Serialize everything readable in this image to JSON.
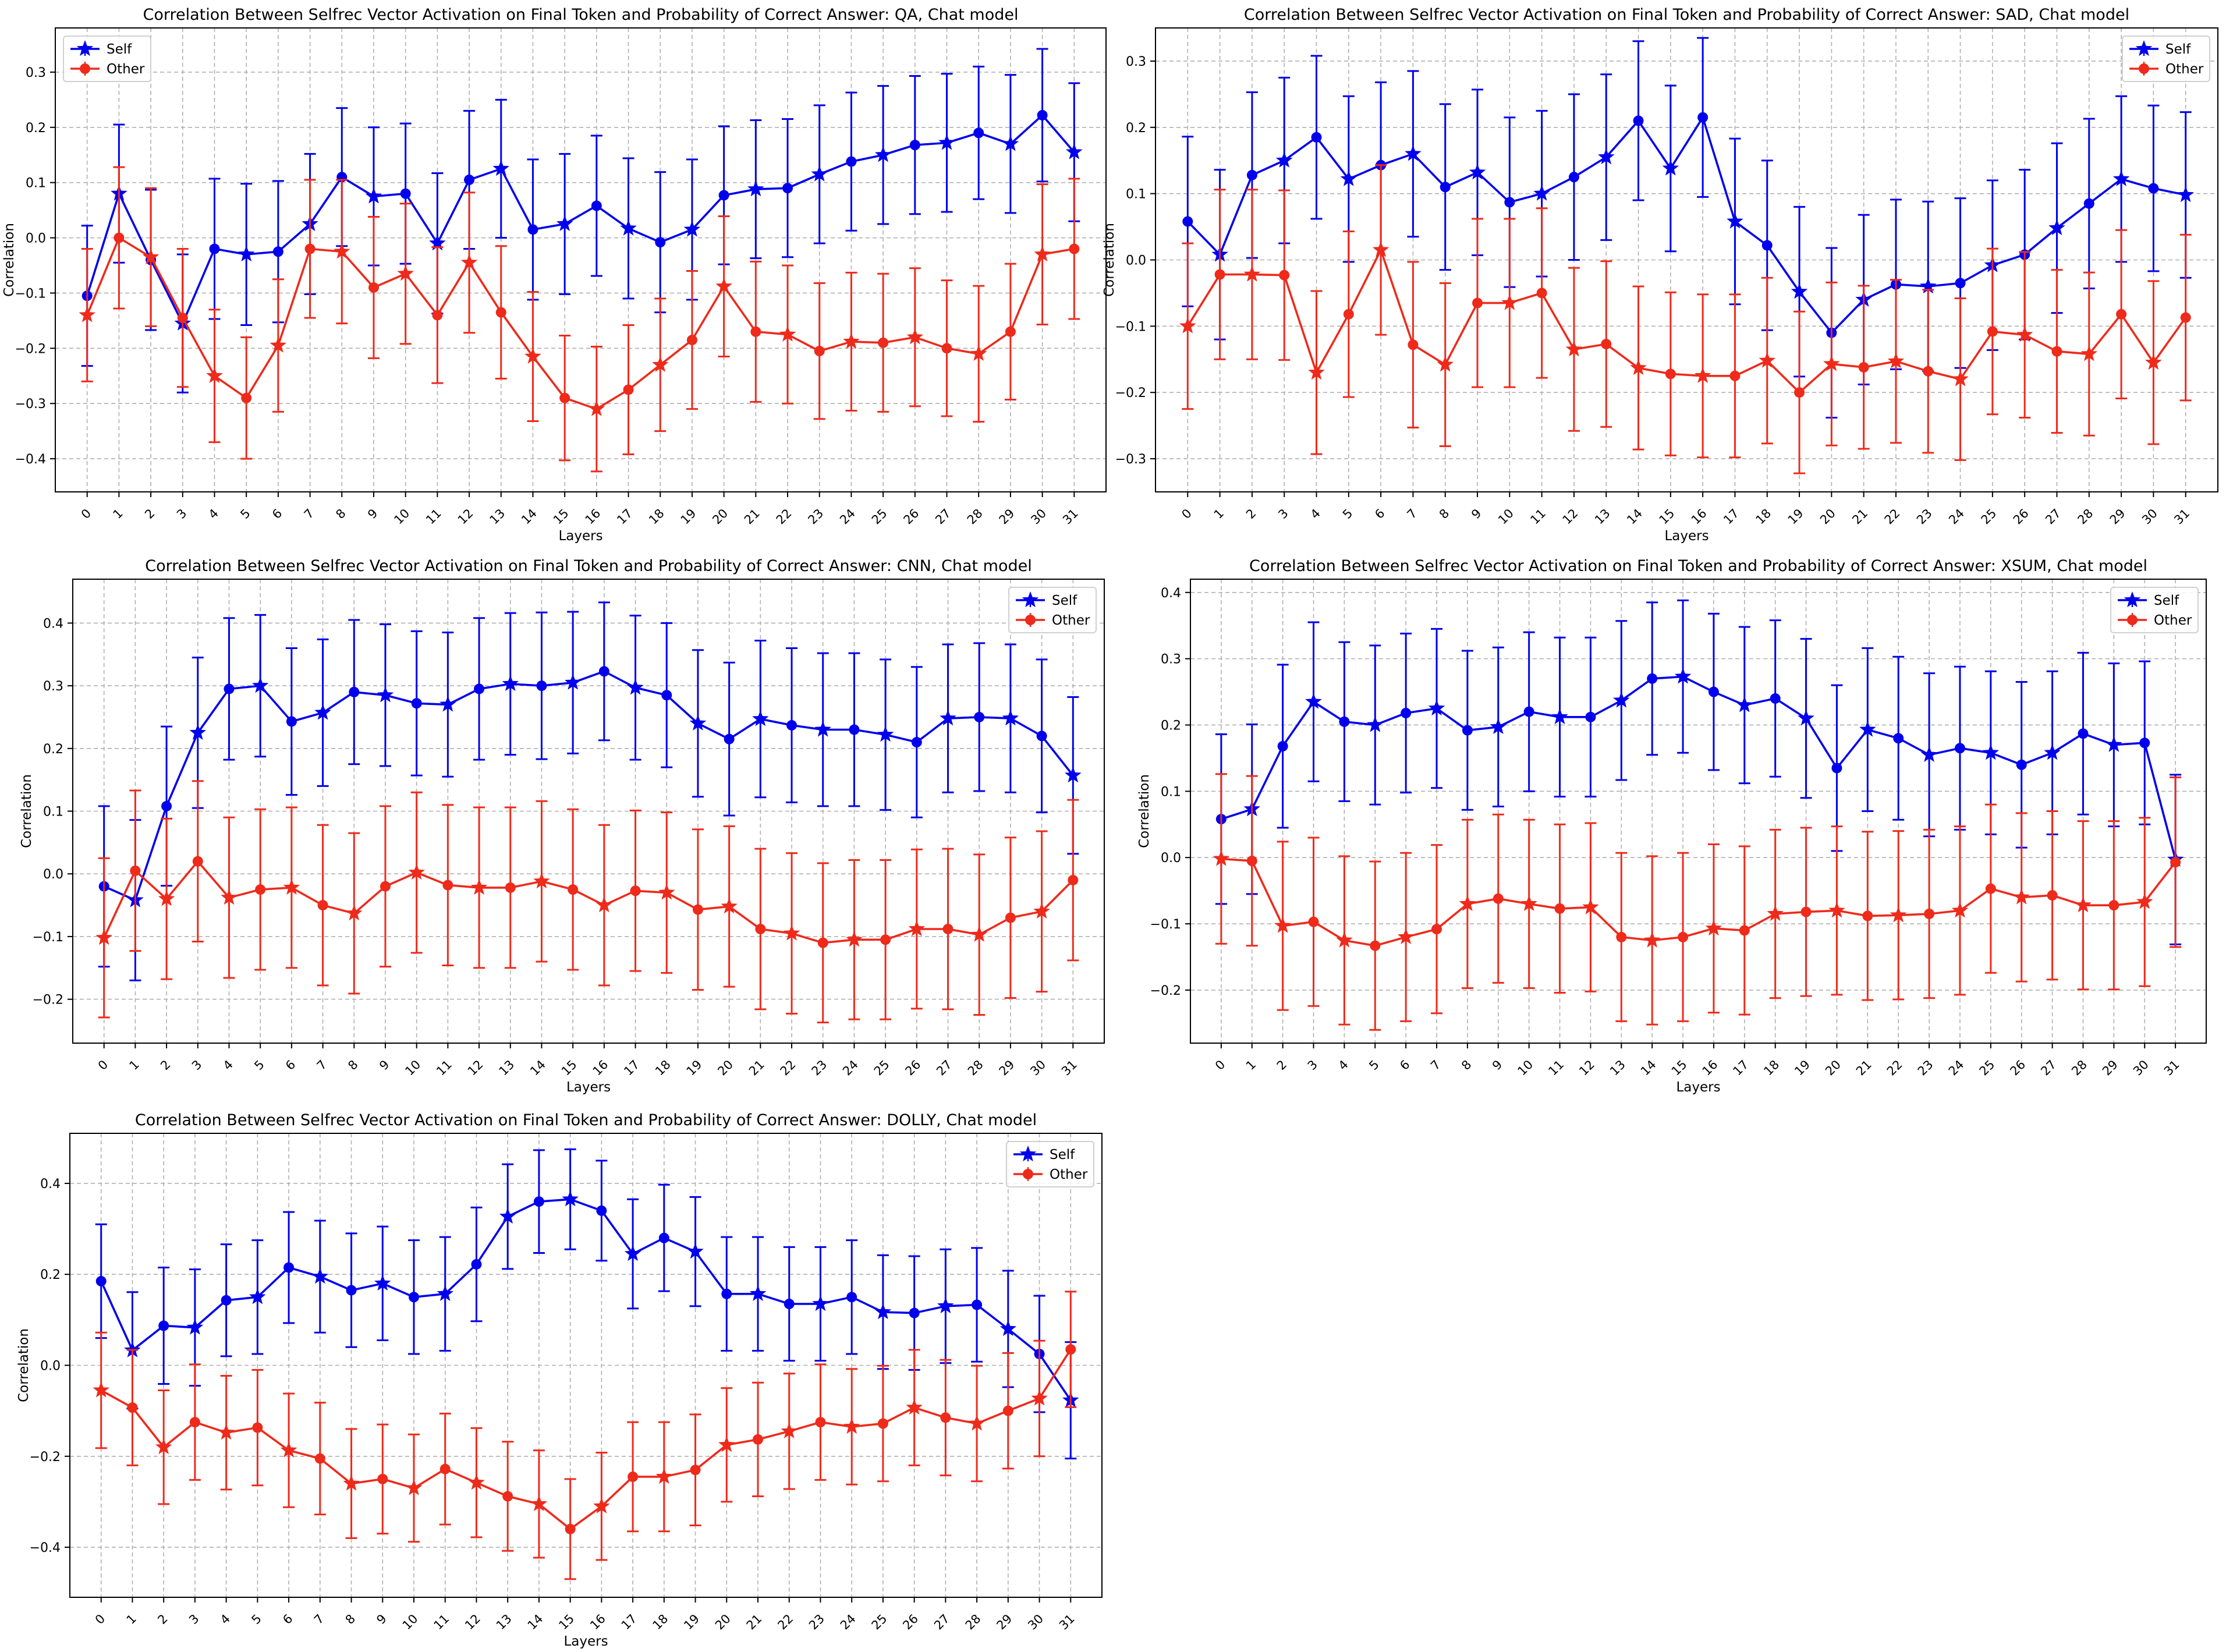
{
  "figure": {
    "colors": {
      "self": "#0000ee",
      "other": "#ee2a1b",
      "grid": "#b0b0b0",
      "axis": "#000000"
    }
  },
  "chart_data": [
    {
      "type": "line",
      "title": "Correlation Between Selfrec Vector Activation on Final Token and Probability of Correct Answer: QA, Chat model",
      "xlabel": "Layers",
      "ylabel": "Correlation",
      "ylim": [
        -0.46,
        0.38
      ],
      "yticks": [
        -0.4,
        -0.3,
        -0.2,
        -0.1,
        0.0,
        0.1,
        0.2,
        0.3
      ],
      "x": [
        0,
        1,
        2,
        3,
        4,
        5,
        6,
        7,
        8,
        9,
        10,
        11,
        12,
        13,
        14,
        15,
        16,
        17,
        18,
        19,
        20,
        21,
        22,
        23,
        24,
        25,
        26,
        27,
        28,
        29,
        30,
        31
      ],
      "grid": true,
      "legend_position": "top-left",
      "series": [
        {
          "name": "Self",
          "color": "#0000ee",
          "values": [
            -0.105,
            0.08,
            -0.04,
            -0.155,
            -0.02,
            -0.03,
            -0.025,
            0.025,
            0.11,
            0.075,
            0.08,
            -0.01,
            0.105,
            0.125,
            0.015,
            0.025,
            0.058,
            0.017,
            -0.008,
            0.015,
            0.077,
            0.088,
            0.09,
            0.115,
            0.138,
            0.15,
            0.168,
            0.172,
            0.19,
            0.17,
            0.222,
            0.155
          ],
          "errors": [
            0.127,
            0.125,
            0.127,
            0.125,
            0.127,
            0.128,
            0.128,
            0.127,
            0.125,
            0.125,
            0.127,
            0.127,
            0.125,
            0.125,
            0.127,
            0.127,
            0.127,
            0.127,
            0.127,
            0.127,
            0.125,
            0.125,
            0.125,
            0.125,
            0.125,
            0.125,
            0.125,
            0.125,
            0.12,
            0.125,
            0.12,
            0.125
          ]
        },
        {
          "name": "Other",
          "color": "#ee2a1b",
          "values": [
            -0.14,
            0.0,
            -0.035,
            -0.145,
            -0.25,
            -0.29,
            -0.195,
            -0.02,
            -0.025,
            -0.09,
            -0.065,
            -0.14,
            -0.045,
            -0.135,
            -0.215,
            -0.29,
            -0.31,
            -0.275,
            -0.23,
            -0.185,
            -0.088,
            -0.17,
            -0.175,
            -0.205,
            -0.188,
            -0.19,
            -0.18,
            -0.2,
            -0.21,
            -0.17,
            -0.03,
            -0.02
          ],
          "errors": [
            0.12,
            0.128,
            0.125,
            0.125,
            0.12,
            0.11,
            0.12,
            0.125,
            0.13,
            0.128,
            0.127,
            0.123,
            0.127,
            0.12,
            0.117,
            0.113,
            0.113,
            0.117,
            0.12,
            0.125,
            0.127,
            0.127,
            0.125,
            0.123,
            0.125,
            0.125,
            0.125,
            0.123,
            0.123,
            0.123,
            0.127,
            0.127
          ]
        }
      ]
    },
    {
      "type": "line",
      "title": "Correlation Between Selfrec Vector Activation on Final Token and Probability of Correct Answer: SAD, Chat model",
      "xlabel": "Layers",
      "ylabel": "Correlation",
      "ylim": [
        -0.35,
        0.35
      ],
      "yticks": [
        -0.3,
        -0.2,
        -0.1,
        0.0,
        0.1,
        0.2,
        0.3
      ],
      "x": [
        0,
        1,
        2,
        3,
        4,
        5,
        6,
        7,
        8,
        9,
        10,
        11,
        12,
        13,
        14,
        15,
        16,
        17,
        18,
        19,
        20,
        21,
        22,
        23,
        24,
        25,
        26,
        27,
        28,
        29,
        30,
        31
      ],
      "grid": true,
      "legend_position": "top-right",
      "series": [
        {
          "name": "Self",
          "color": "#0000ee",
          "values": [
            0.058,
            0.008,
            0.128,
            0.15,
            0.185,
            0.122,
            0.143,
            0.16,
            0.11,
            0.132,
            0.087,
            0.1,
            0.125,
            0.155,
            0.21,
            0.138,
            0.215,
            0.058,
            0.022,
            -0.048,
            -0.11,
            -0.06,
            -0.037,
            -0.04,
            -0.035,
            -0.008,
            0.008,
            0.048,
            0.085,
            0.122,
            0.108,
            0.098
          ],
          "errors": [
            0.128,
            0.128,
            0.125,
            0.125,
            0.123,
            0.125,
            0.125,
            0.125,
            0.125,
            0.125,
            0.128,
            0.125,
            0.125,
            0.125,
            0.12,
            0.125,
            0.12,
            0.125,
            0.128,
            0.128,
            0.128,
            0.128,
            0.128,
            0.128,
            0.128,
            0.128,
            0.128,
            0.128,
            0.128,
            0.125,
            0.125,
            0.125
          ]
        },
        {
          "name": "Other",
          "color": "#ee2a1b",
          "values": [
            -0.1,
            -0.022,
            -0.022,
            -0.023,
            -0.17,
            -0.082,
            0.015,
            -0.128,
            -0.158,
            -0.065,
            -0.065,
            -0.05,
            -0.135,
            -0.127,
            -0.163,
            -0.172,
            -0.175,
            -0.175,
            -0.152,
            -0.2,
            -0.157,
            -0.162,
            -0.153,
            -0.168,
            -0.18,
            -0.108,
            -0.113,
            -0.138,
            -0.142,
            -0.082,
            -0.155,
            -0.087
          ],
          "errors": [
            0.125,
            0.128,
            0.128,
            0.128,
            0.123,
            0.125,
            0.128,
            0.125,
            0.123,
            0.127,
            0.127,
            0.128,
            0.123,
            0.125,
            0.123,
            0.123,
            0.123,
            0.123,
            0.125,
            0.122,
            0.123,
            0.123,
            0.123,
            0.123,
            0.122,
            0.125,
            0.125,
            0.123,
            0.123,
            0.127,
            0.123,
            0.125
          ]
        }
      ]
    },
    {
      "type": "line",
      "title": "Correlation Between Selfrec Vector Activation on Final Token and Probability of Correct Answer: CNN, Chat model",
      "xlabel": "Layers",
      "ylabel": "Correlation",
      "ylim": [
        -0.27,
        0.47
      ],
      "yticks": [
        -0.2,
        -0.1,
        0.0,
        0.1,
        0.2,
        0.3,
        0.4
      ],
      "x": [
        0,
        1,
        2,
        3,
        4,
        5,
        6,
        7,
        8,
        9,
        10,
        11,
        12,
        13,
        14,
        15,
        16,
        17,
        18,
        19,
        20,
        21,
        22,
        23,
        24,
        25,
        26,
        27,
        28,
        29,
        30,
        31
      ],
      "grid": true,
      "legend_position": "top-right",
      "series": [
        {
          "name": "Self",
          "color": "#0000ee",
          "values": [
            -0.02,
            -0.042,
            0.108,
            0.225,
            0.295,
            0.3,
            0.243,
            0.257,
            0.29,
            0.285,
            0.272,
            0.27,
            0.295,
            0.303,
            0.3,
            0.305,
            0.323,
            0.297,
            0.285,
            0.24,
            0.215,
            0.247,
            0.237,
            0.23,
            0.23,
            0.222,
            0.21,
            0.248,
            0.25,
            0.248,
            0.22,
            0.157
          ],
          "errors": [
            0.128,
            0.128,
            0.127,
            0.12,
            0.113,
            0.113,
            0.117,
            0.117,
            0.115,
            0.113,
            0.115,
            0.115,
            0.113,
            0.113,
            0.117,
            0.113,
            0.11,
            0.115,
            0.115,
            0.117,
            0.122,
            0.125,
            0.123,
            0.122,
            0.122,
            0.12,
            0.12,
            0.118,
            0.118,
            0.118,
            0.122,
            0.125
          ]
        },
        {
          "name": "Other",
          "color": "#ee2a1b",
          "values": [
            -0.102,
            0.005,
            -0.04,
            0.02,
            -0.038,
            -0.025,
            -0.022,
            -0.05,
            -0.063,
            -0.02,
            0.002,
            -0.018,
            -0.022,
            -0.022,
            -0.012,
            -0.025,
            -0.05,
            -0.027,
            -0.03,
            -0.057,
            -0.052,
            -0.088,
            -0.095,
            -0.11,
            -0.105,
            -0.105,
            -0.088,
            -0.088,
            -0.097,
            -0.07,
            -0.06,
            -0.01
          ],
          "errors": [
            0.127,
            0.128,
            0.128,
            0.128,
            0.128,
            0.128,
            0.128,
            0.128,
            0.128,
            0.128,
            0.128,
            0.128,
            0.128,
            0.128,
            0.128,
            0.128,
            0.128,
            0.128,
            0.128,
            0.128,
            0.128,
            0.128,
            0.128,
            0.127,
            0.127,
            0.127,
            0.127,
            0.128,
            0.128,
            0.128,
            0.128,
            0.128
          ]
        }
      ]
    },
    {
      "type": "line",
      "title": "Correlation Between Selfrec Vector Activation on Final Token and Probability of Correct Answer: XSUM, Chat model",
      "xlabel": "Layers",
      "ylabel": "Correlation",
      "ylim": [
        -0.28,
        0.42
      ],
      "yticks": [
        -0.2,
        -0.1,
        0.0,
        0.1,
        0.2,
        0.3,
        0.4
      ],
      "x": [
        0,
        1,
        2,
        3,
        4,
        5,
        6,
        7,
        8,
        9,
        10,
        11,
        12,
        13,
        14,
        15,
        16,
        17,
        18,
        19,
        20,
        21,
        22,
        23,
        24,
        25,
        26,
        27,
        28,
        29,
        30,
        31
      ],
      "grid": true,
      "legend_position": "top-right",
      "series": [
        {
          "name": "Self",
          "color": "#0000ee",
          "values": [
            0.058,
            0.073,
            0.168,
            0.235,
            0.205,
            0.2,
            0.218,
            0.225,
            0.192,
            0.197,
            0.22,
            0.212,
            0.212,
            0.237,
            0.27,
            0.273,
            0.25,
            0.23,
            0.24,
            0.21,
            0.135,
            0.193,
            0.18,
            0.155,
            0.165,
            0.158,
            0.14,
            0.158,
            0.187,
            0.17,
            0.173,
            -0.003
          ],
          "errors": [
            0.128,
            0.128,
            0.123,
            0.12,
            0.12,
            0.12,
            0.12,
            0.12,
            0.12,
            0.12,
            0.12,
            0.12,
            0.12,
            0.12,
            0.115,
            0.115,
            0.118,
            0.118,
            0.118,
            0.12,
            0.125,
            0.123,
            0.123,
            0.123,
            0.123,
            0.123,
            0.125,
            0.123,
            0.122,
            0.123,
            0.123,
            0.128
          ]
        },
        {
          "name": "Other",
          "color": "#ee2a1b",
          "values": [
            -0.002,
            -0.005,
            -0.103,
            -0.097,
            -0.125,
            -0.133,
            -0.12,
            -0.108,
            -0.07,
            -0.062,
            -0.07,
            -0.077,
            -0.075,
            -0.12,
            -0.125,
            -0.12,
            -0.107,
            -0.11,
            -0.085,
            -0.082,
            -0.08,
            -0.088,
            -0.087,
            -0.085,
            -0.08,
            -0.047,
            -0.06,
            -0.057,
            -0.072,
            -0.072,
            -0.067,
            -0.007
          ],
          "errors": [
            0.128,
            0.128,
            0.127,
            0.127,
            0.127,
            0.127,
            0.127,
            0.127,
            0.127,
            0.127,
            0.127,
            0.127,
            0.127,
            0.127,
            0.127,
            0.127,
            0.127,
            0.127,
            0.127,
            0.127,
            0.127,
            0.127,
            0.127,
            0.127,
            0.127,
            0.127,
            0.127,
            0.127,
            0.127,
            0.127,
            0.127,
            0.128
          ]
        }
      ]
    },
    {
      "type": "line",
      "title": "Correlation Between Selfrec Vector Activation on Final Token and Probability of Correct Answer: DOLLY, Chat model",
      "xlabel": "Layers",
      "ylabel": "Correlation",
      "ylim": [
        -0.51,
        0.51
      ],
      "yticks": [
        -0.4,
        -0.2,
        0.0,
        0.2,
        0.4
      ],
      "x": [
        0,
        1,
        2,
        3,
        4,
        5,
        6,
        7,
        8,
        9,
        10,
        11,
        12,
        13,
        14,
        15,
        16,
        17,
        18,
        19,
        20,
        21,
        22,
        23,
        24,
        25,
        26,
        27,
        28,
        29,
        30,
        31
      ],
      "grid": true,
      "legend_position": "top-right",
      "series": [
        {
          "name": "Self",
          "color": "#0000ee",
          "values": [
            0.185,
            0.033,
            0.087,
            0.083,
            0.143,
            0.15,
            0.215,
            0.195,
            0.165,
            0.18,
            0.15,
            0.157,
            0.222,
            0.327,
            0.36,
            0.365,
            0.34,
            0.245,
            0.28,
            0.25,
            0.157,
            0.157,
            0.135,
            0.135,
            0.15,
            0.117,
            0.115,
            0.13,
            0.133,
            0.08,
            0.025,
            -0.077
          ],
          "errors": [
            0.125,
            0.128,
            0.128,
            0.128,
            0.123,
            0.125,
            0.122,
            0.123,
            0.125,
            0.125,
            0.125,
            0.125,
            0.125,
            0.115,
            0.113,
            0.11,
            0.11,
            0.12,
            0.117,
            0.12,
            0.125,
            0.125,
            0.125,
            0.125,
            0.125,
            0.125,
            0.125,
            0.125,
            0.125,
            0.128,
            0.128,
            0.128
          ]
        },
        {
          "name": "Other",
          "color": "#ee2a1b",
          "values": [
            -0.055,
            -0.093,
            -0.18,
            -0.125,
            -0.148,
            -0.137,
            -0.187,
            -0.205,
            -0.26,
            -0.25,
            -0.27,
            -0.228,
            -0.258,
            -0.288,
            -0.305,
            -0.36,
            -0.31,
            -0.245,
            -0.245,
            -0.23,
            -0.175,
            -0.163,
            -0.145,
            -0.125,
            -0.135,
            -0.128,
            -0.093,
            -0.115,
            -0.128,
            -0.1,
            -0.073,
            0.035
          ],
          "errors": [
            0.127,
            0.127,
            0.125,
            0.127,
            0.125,
            0.127,
            0.125,
            0.123,
            0.12,
            0.12,
            0.118,
            0.122,
            0.12,
            0.12,
            0.118,
            0.11,
            0.118,
            0.12,
            0.12,
            0.122,
            0.125,
            0.125,
            0.127,
            0.127,
            0.127,
            0.127,
            0.127,
            0.127,
            0.127,
            0.127,
            0.127,
            0.127
          ]
        }
      ]
    }
  ]
}
